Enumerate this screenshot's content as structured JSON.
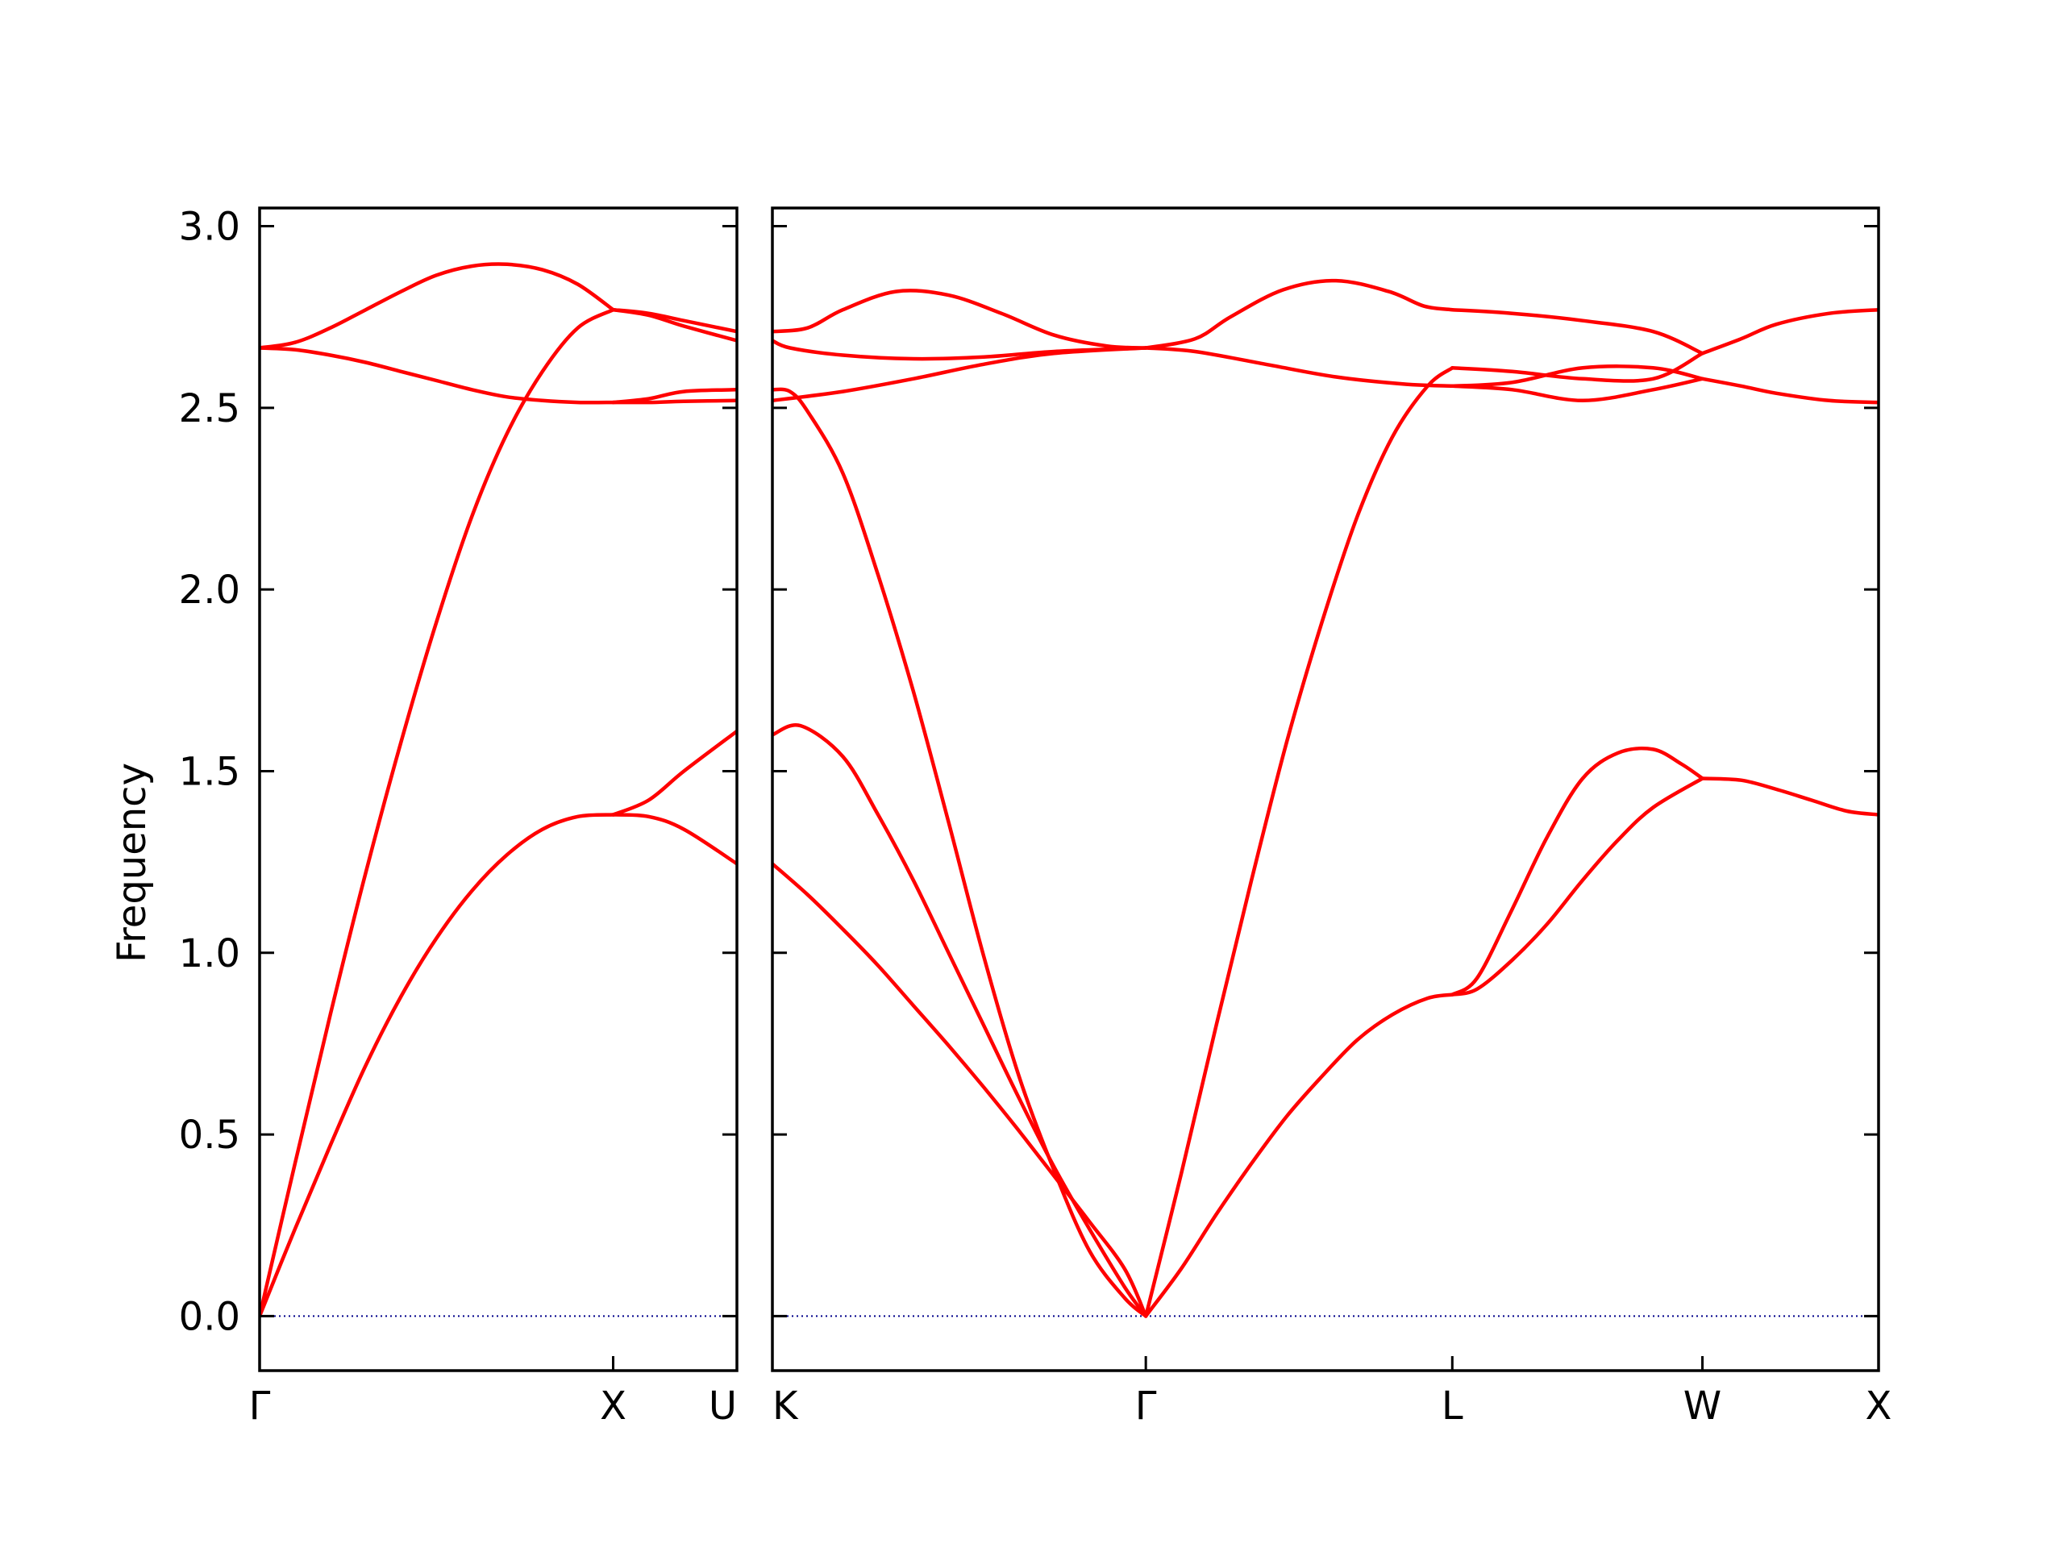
{
  "chart_data": {
    "type": "line",
    "ylabel": "Frequency",
    "ylim": [
      -0.15,
      3.05
    ],
    "yticks": [
      0.0,
      0.5,
      1.0,
      1.5,
      2.0,
      2.5,
      3.0
    ],
    "ytick_labels": [
      "0.0",
      "0.5",
      "1.0",
      "1.5",
      "2.0",
      "2.5",
      "3.0"
    ],
    "zero_line": {
      "value": 0.0,
      "color": "#00008b",
      "style": "dotted"
    },
    "line_color": "#ff0000",
    "panels": [
      {
        "id": "left",
        "xlim": [
          0,
          1.35
        ],
        "xticks": [
          0,
          1.0,
          1.35
        ],
        "xtick_labels": [
          "Γ",
          "X",
          "U"
        ],
        "series": [
          {
            "x": [
              0,
              0.1,
              0.2,
              0.3,
              0.4,
              0.5,
              0.6,
              0.7,
              0.8,
              0.9,
              1.0
            ],
            "y": [
              0.0,
              0.24,
              0.47,
              0.69,
              0.88,
              1.04,
              1.17,
              1.27,
              1.34,
              1.375,
              1.38
            ]
          },
          {
            "x": [
              0,
              0.1,
              0.2,
              0.3,
              0.4,
              0.5,
              0.6,
              0.7,
              0.8,
              0.9,
              1.0
            ],
            "y": [
              0.0,
              0.42,
              0.83,
              1.22,
              1.58,
              1.91,
              2.2,
              2.43,
              2.6,
              2.72,
              2.77
            ]
          },
          {
            "x": [
              0,
              0.1,
              0.2,
              0.3,
              0.4,
              0.5,
              0.6,
              0.7,
              0.8,
              0.9,
              1.0
            ],
            "y": [
              2.665,
              2.66,
              2.645,
              2.625,
              2.6,
              2.575,
              2.55,
              2.53,
              2.52,
              2.515,
              2.515
            ]
          },
          {
            "x": [
              0,
              0.1,
              0.2,
              0.3,
              0.4,
              0.5,
              0.6,
              0.7,
              0.8,
              0.9,
              1.0
            ],
            "y": [
              2.665,
              2.68,
              2.72,
              2.77,
              2.82,
              2.865,
              2.89,
              2.895,
              2.88,
              2.84,
              2.77
            ]
          },
          {
            "x": [
              1.0,
              1.1,
              1.2,
              1.35
            ],
            "y": [
              1.38,
              1.375,
              1.34,
              1.245
            ]
          },
          {
            "x": [
              1.0,
              1.1,
              1.2,
              1.35
            ],
            "y": [
              1.38,
              1.42,
              1.5,
              1.61
            ]
          },
          {
            "x": [
              1.0,
              1.1,
              1.2,
              1.35
            ],
            "y": [
              2.515,
              2.515,
              2.518,
              2.52
            ]
          },
          {
            "x": [
              1.0,
              1.1,
              1.2,
              1.35
            ],
            "y": [
              2.515,
              2.525,
              2.545,
              2.55
            ]
          },
          {
            "x": [
              1.0,
              1.1,
              1.2,
              1.35
            ],
            "y": [
              2.77,
              2.76,
              2.74,
              2.71
            ]
          },
          {
            "x": [
              1.0,
              1.1,
              1.2,
              1.35
            ],
            "y": [
              2.77,
              2.755,
              2.725,
              2.685
            ]
          }
        ]
      },
      {
        "id": "right",
        "xlim": [
          0,
          3.14
        ],
        "xticks": [
          0,
          1.06,
          1.93,
          2.64,
          3.14
        ],
        "xtick_labels": [
          "K",
          "Γ",
          "L",
          "W",
          "X"
        ],
        "series": [
          {
            "x": [
              0.0,
              0.1,
              0.2,
              0.3,
              0.4,
              0.5,
              0.6,
              0.7,
              0.8,
              0.9,
              1.0,
              1.06
            ],
            "y": [
              1.245,
              1.16,
              1.065,
              0.965,
              0.855,
              0.745,
              0.63,
              0.51,
              0.385,
              0.26,
              0.13,
              0.0
            ]
          },
          {
            "x": [
              0.0,
              0.08,
              0.2,
              0.3,
              0.4,
              0.5,
              0.6,
              0.7,
              0.8,
              0.9,
              1.0,
              1.06
            ],
            "y": [
              1.6,
              1.625,
              1.54,
              1.38,
              1.2,
              1.0,
              0.8,
              0.6,
              0.41,
              0.24,
              0.08,
              0.0
            ]
          },
          {
            "x": [
              0.0,
              0.05,
              0.1,
              0.2,
              0.3,
              0.4,
              0.5,
              0.6,
              0.7,
              0.8,
              0.9,
              1.0,
              1.06
            ],
            "y": [
              2.55,
              2.545,
              2.49,
              2.32,
              2.04,
              1.72,
              1.36,
              0.99,
              0.66,
              0.4,
              0.18,
              0.05,
              0.0
            ]
          },
          {
            "x": [
              0.0,
              0.2,
              0.4,
              0.6,
              0.8,
              1.06
            ],
            "y": [
              2.52,
              2.545,
              2.58,
              2.62,
              2.65,
              2.665
            ]
          },
          {
            "x": [
              0.0,
              0.05,
              0.2,
              0.4,
              0.6,
              0.8,
              1.06
            ],
            "y": [
              2.685,
              2.665,
              2.645,
              2.635,
              2.64,
              2.655,
              2.665
            ]
          },
          {
            "x": [
              0.0,
              0.1,
              0.2,
              0.35,
              0.5,
              0.65,
              0.8,
              0.95,
              1.06
            ],
            "y": [
              2.71,
              2.72,
              2.77,
              2.82,
              2.81,
              2.76,
              2.7,
              2.67,
              2.665
            ]
          },
          {
            "x": [
              1.06,
              1.16,
              1.26,
              1.36,
              1.46,
              1.56,
              1.66,
              1.76,
              1.86,
              1.93
            ],
            "y": [
              0.0,
              0.13,
              0.28,
              0.42,
              0.55,
              0.66,
              0.76,
              0.83,
              0.875,
              0.885
            ]
          },
          {
            "x": [
              1.06,
              1.16,
              1.26,
              1.36,
              1.46,
              1.56,
              1.66,
              1.76,
              1.86,
              1.93
            ],
            "y": [
              0.0,
              0.39,
              0.8,
              1.2,
              1.58,
              1.91,
              2.2,
              2.42,
              2.56,
              2.61
            ]
          },
          {
            "x": [
              1.06,
              1.2,
              1.4,
              1.6,
              1.8,
              1.93
            ],
            "y": [
              2.665,
              2.655,
              2.62,
              2.585,
              2.565,
              2.56
            ]
          },
          {
            "x": [
              1.06,
              1.2,
              1.3,
              1.45,
              1.6,
              1.75,
              1.85,
              1.93
            ],
            "y": [
              2.665,
              2.69,
              2.75,
              2.825,
              2.85,
              2.82,
              2.78,
              2.77
            ]
          },
          {
            "x": [
              1.93,
              2.0,
              2.1,
              2.2,
              2.3,
              2.4,
              2.5,
              2.64
            ],
            "y": [
              0.885,
              0.9,
              0.98,
              1.08,
              1.2,
              1.31,
              1.4,
              1.48
            ]
          },
          {
            "x": [
              1.93,
              2.0,
              2.1,
              2.2,
              2.3,
              2.4,
              2.5,
              2.58,
              2.64
            ],
            "y": [
              0.885,
              0.93,
              1.12,
              1.32,
              1.48,
              1.55,
              1.56,
              1.52,
              1.48
            ]
          },
          {
            "x": [
              1.93,
              2.1,
              2.3,
              2.5,
              2.64
            ],
            "y": [
              2.61,
              2.6,
              2.58,
              2.58,
              2.65
            ]
          },
          {
            "x": [
              1.93,
              2.1,
              2.3,
              2.5,
              2.64
            ],
            "y": [
              2.56,
              2.57,
              2.61,
              2.61,
              2.58
            ]
          },
          {
            "x": [
              1.93,
              2.1,
              2.3,
              2.5,
              2.64
            ],
            "y": [
              2.56,
              2.55,
              2.52,
              2.55,
              2.58
            ]
          },
          {
            "x": [
              1.93,
              2.1,
              2.3,
              2.5,
              2.64
            ],
            "y": [
              2.77,
              2.76,
              2.74,
              2.71,
              2.65
            ]
          },
          {
            "x": [
              2.64,
              2.75,
              2.85,
              2.95,
              3.05,
              3.14
            ],
            "y": [
              1.48,
              1.475,
              1.45,
              1.42,
              1.39,
              1.38
            ]
          },
          {
            "x": [
              2.64,
              2.75,
              2.85,
              3.0,
              3.14
            ],
            "y": [
              2.58,
              2.56,
              2.54,
              2.52,
              2.515
            ]
          },
          {
            "x": [
              2.64,
              2.75,
              2.85,
              3.0,
              3.14
            ],
            "y": [
              2.65,
              2.69,
              2.73,
              2.76,
              2.77
            ]
          }
        ]
      }
    ]
  }
}
